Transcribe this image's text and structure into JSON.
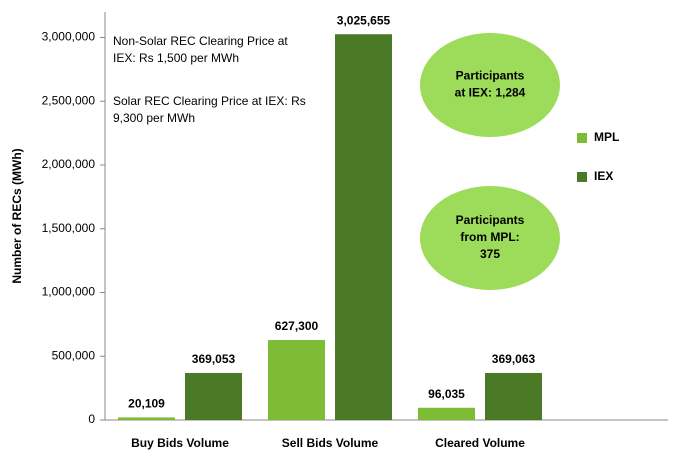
{
  "chart_data": {
    "type": "bar",
    "y_label": "Number of RECs (MWh)",
    "categories": [
      "Buy Bids Volume",
      "Sell Bids Volume",
      "Cleared Volume"
    ],
    "series": [
      {
        "name": "MPL",
        "color": "#7ebc36",
        "values": [
          20109,
          627300,
          96035
        ],
        "value_labels": [
          "20,109",
          "627,300",
          "96,035"
        ]
      },
      {
        "name": "IEX",
        "color": "#4b7a26",
        "values": [
          369053,
          3025655,
          369063
        ],
        "value_labels": [
          "369,053",
          "3,025,655",
          "369,063"
        ]
      }
    ],
    "ylim": [
      0,
      3200000
    ],
    "yticks": [
      0,
      {
        "value": 500000,
        "label": "500,000"
      },
      {
        "value": 1000000,
        "label": "1,000,000"
      },
      {
        "value": 1500000,
        "label": "1,500,000"
      },
      {
        "value": 2000000,
        "label": "2,000,000"
      },
      {
        "value": 2500000,
        "label": "2,500,000"
      },
      {
        "value": 3000000,
        "label": "3,000,000"
      }
    ],
    "legend": "right",
    "annotations": [
      {
        "lines": [
          "Non-Solar REC Clearing Price at",
          "IEX: Rs 1,500 per MWh"
        ]
      },
      {
        "lines": [
          "Solar REC Clearing Price at IEX:  Rs",
          "9,300 per MWh"
        ]
      }
    ],
    "callouts": [
      {
        "color": "#9ddc5a",
        "lines": [
          "Participants",
          "at IEX: 1,284"
        ]
      },
      {
        "color": "#9ddc5a",
        "lines": [
          "Participants",
          "from MPL:",
          "375"
        ]
      }
    ]
  }
}
